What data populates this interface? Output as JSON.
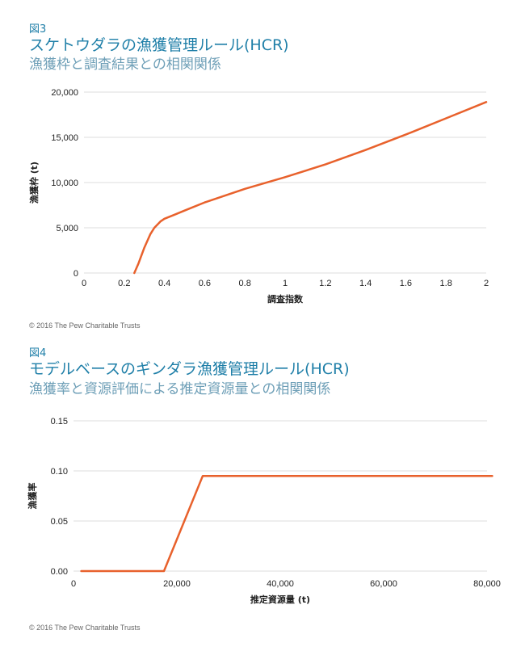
{
  "colors": {
    "accent": "#1f7fa8",
    "subtitle": "#6e9fb7",
    "line": "#e8612c",
    "grid": "#dcdcdc"
  },
  "chart_data": [
    {
      "type": "line",
      "label": "図3",
      "title": "スケトウダラの漁獲管理ルール(HCR)",
      "subtitle": "漁獲枠と調査結果との相関関係",
      "xlabel": "調査指数",
      "ylabel": "漁獲枠 (t)",
      "xlim": [
        0,
        2
      ],
      "ylim": [
        0,
        20000
      ],
      "x_ticks": [
        0,
        0.2,
        0.4,
        0.6,
        0.8,
        1,
        1.2,
        1.4,
        1.6,
        1.8,
        2
      ],
      "x_tick_labels": [
        "0",
        "0.2",
        "0.4",
        "0.6",
        "0.8",
        "1",
        "1.2",
        "1.4",
        "1.6",
        "1.8",
        "2"
      ],
      "y_ticks": [
        0,
        5000,
        10000,
        15000,
        20000
      ],
      "y_tick_labels": [
        "0",
        "5,000",
        "10,000",
        "15,000",
        "20,000"
      ],
      "grid": "horizontal",
      "series": [
        {
          "x": [
            0.25,
            0.27,
            0.3,
            0.33,
            0.35,
            0.38,
            0.4,
            0.45,
            0.5,
            0.6,
            0.8,
            1.0,
            1.2,
            1.4,
            1.6,
            1.8,
            2.0
          ],
          "y": [
            0,
            1000,
            2800,
            4300,
            5000,
            5700,
            6000,
            6450,
            6900,
            7800,
            9300,
            10600,
            12000,
            13600,
            15300,
            17100,
            18900
          ]
        }
      ],
      "credit": "© 2016 The Pew Charitable Trusts"
    },
    {
      "type": "line",
      "label": "図4",
      "title": "モデルベースのギンダラ漁獲管理ルール(HCR)",
      "subtitle": "漁獲率と資源評価による推定資源量との相関関係",
      "xlabel": "推定資源量 (t)",
      "ylabel": "漁獲率",
      "xlim": [
        0,
        80000
      ],
      "ylim": [
        0,
        0.15
      ],
      "x_ticks": [
        0,
        20000,
        40000,
        60000,
        80000
      ],
      "x_tick_labels": [
        "0",
        "20,000",
        "40,000",
        "60,000",
        "80,000"
      ],
      "y_ticks": [
        0,
        0.05,
        0.1,
        0.15
      ],
      "y_tick_labels": [
        "0.00",
        "0.05",
        "0.10",
        "0.15"
      ],
      "grid": "horizontal",
      "series": [
        {
          "x": [
            1500,
            17500,
            25000,
            81000
          ],
          "y": [
            0,
            0,
            0.095,
            0.095
          ]
        }
      ],
      "credit": "© 2016 The Pew Charitable Trusts"
    }
  ]
}
